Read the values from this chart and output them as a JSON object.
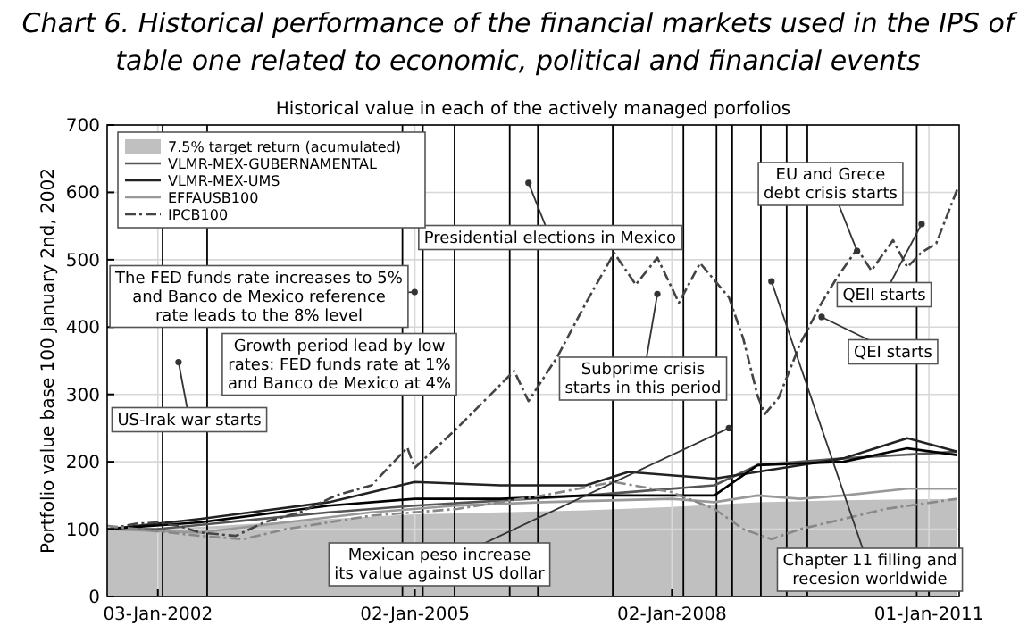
{
  "chart_data": {
    "type": "line",
    "title": "Chart 6. Historical performance of the financial markets used in the IPS of table one related to economic, political and financial events",
    "subtitle": "Historical value in each of the actively managed porfolios",
    "ylabel": "Portfolio value base 100 January 2nd, 2002",
    "xlim": [
      "2001-06-01",
      "2011-05-10"
    ],
    "ylim": [
      0,
      700
    ],
    "xticks": [
      {
        "value": "2002-01-03",
        "label": "03-Jan-2002"
      },
      {
        "value": "2005-01-02",
        "label": "02-Jan-2005"
      },
      {
        "value": "2008-01-02",
        "label": "02-Jan-2008"
      },
      {
        "value": "2011-01-01",
        "label": "01-Jan-2011"
      }
    ],
    "yticks": [
      0,
      100,
      200,
      300,
      400,
      500,
      600,
      700
    ],
    "grid": true,
    "legend": "top left",
    "series": [
      {
        "name": "7.5% target return (acumulated)",
        "type": "area",
        "color": "#c0c0c0",
        "x": [
          "2001-06",
          "2002-01",
          "2003-01",
          "2004-01",
          "2005-01",
          "2006-01",
          "2007-01",
          "2008-01",
          "2009-01",
          "2010-01",
          "2011-05"
        ],
        "values": [
          100,
          100,
          107,
          115,
          122,
          125,
          128,
          133,
          140,
          143,
          145
        ]
      },
      {
        "name": "VLMR-MEX-GUBERNAMENTAL",
        "color": "#555555",
        "line_style": "solid",
        "x": [
          "2001-06",
          "2002-01",
          "2004-01",
          "2005-01",
          "2007-01",
          "2008-07",
          "2009-01",
          "2010-01",
          "2011-05"
        ],
        "values": [
          100,
          100,
          125,
          135,
          150,
          165,
          195,
          205,
          215
        ]
      },
      {
        "name": "VLMR-MEX-UMS",
        "color": "#222222",
        "line_style": "solid",
        "x": [
          "2001-06",
          "2002-07",
          "2004-01",
          "2005-01",
          "2006-01",
          "2007-01",
          "2007-07",
          "2008-07",
          "2009-07",
          "2010-01",
          "2010-10",
          "2011-05"
        ],
        "values": [
          100,
          115,
          140,
          170,
          165,
          165,
          185,
          175,
          195,
          205,
          235,
          215
        ]
      },
      {
        "name": "EFFAUSB100",
        "color": "#999999",
        "line_style": "solid",
        "x": [
          "2001-06",
          "2002-07",
          "2003-07",
          "2004-07",
          "2005-07",
          "2006-07",
          "2008-01",
          "2008-07",
          "2009-01",
          "2009-07",
          "2010-01",
          "2010-10",
          "2011-05"
        ],
        "values": [
          100,
          95,
          110,
          125,
          135,
          140,
          145,
          140,
          150,
          145,
          150,
          160,
          160
        ]
      },
      {
        "color": "#000000",
        "line_style": "solid",
        "x": [
          "2001-06",
          "2002-07",
          "2004-01",
          "2005-01",
          "2006-01",
          "2007-01",
          "2008-07",
          "2009-01",
          "2010-01",
          "2010-10",
          "2011-05"
        ],
        "values": [
          100,
          110,
          135,
          145,
          145,
          150,
          150,
          195,
          200,
          220,
          210
        ]
      },
      {
        "name": "IPCB100",
        "color": "#444444",
        "line_style": "dashed",
        "x": [
          "2001-06",
          "2001-10",
          "2002-01",
          "2002-04",
          "2002-07",
          "2002-12",
          "2003-04",
          "2003-09",
          "2004-02",
          "2004-07",
          "2004-12",
          "2005-01",
          "2005-07",
          "2006-03",
          "2006-05",
          "2006-09",
          "2007-01",
          "2007-05",
          "2007-08",
          "2007-11",
          "2008-02",
          "2008-05",
          "2008-09",
          "2008-11",
          "2009-01",
          "2009-02",
          "2009-04",
          "2009-07",
          "2009-10",
          "2009-12",
          "2010-03",
          "2010-05",
          "2010-08",
          "2010-10",
          "2010-12",
          "2011-02",
          "2011-05"
        ],
        "values": [
          100,
          108,
          110,
          105,
          95,
          90,
          110,
          125,
          150,
          165,
          221,
          191,
          250,
          335,
          290,
          356,
          436,
          510,
          463,
          503,
          436,
          495,
          444,
          383,
          298,
          271,
          295,
          375,
          436,
          471,
          516,
          484,
          529,
          489,
          511,
          524,
          604
        ]
      },
      {
        "color": "#888888",
        "line_style": "dashed",
        "x": [
          "2001-06",
          "2002-07",
          "2003-01",
          "2003-07",
          "2004-07",
          "2005-07",
          "2006-07",
          "2007-05",
          "2008-01",
          "2008-07",
          "2008-11",
          "2009-03",
          "2009-07",
          "2010-01",
          "2010-07",
          "2011-05"
        ],
        "values": [
          105,
          90,
          85,
          100,
          120,
          130,
          150,
          170,
          155,
          130,
          100,
          85,
          100,
          115,
          130,
          145
        ]
      }
    ],
    "ref_lines": [
      {
        "axis": "x",
        "value": "2002-01-23",
        "color": "#000000"
      },
      {
        "axis": "x",
        "value": "2002-08-01",
        "color": "#000000"
      },
      {
        "axis": "x",
        "value": "2004-11-10",
        "color": "#000000"
      },
      {
        "axis": "x",
        "value": "2005-02-05",
        "color": "#000000"
      },
      {
        "axis": "x",
        "value": "2005-06-20",
        "color": "#000000"
      },
      {
        "axis": "x",
        "value": "2006-02-10",
        "color": "#000000"
      },
      {
        "axis": "x",
        "value": "2006-06-10",
        "color": "#000000"
      },
      {
        "axis": "x",
        "value": "2007-04-25",
        "color": "#000000"
      },
      {
        "axis": "x",
        "value": "2008-02-20",
        "color": "#000000"
      },
      {
        "axis": "x",
        "value": "2008-07-10",
        "color": "#000000"
      },
      {
        "axis": "x",
        "value": "2008-09-15",
        "color": "#000000"
      },
      {
        "axis": "x",
        "value": "2009-01-15",
        "color": "#000000"
      },
      {
        "axis": "x",
        "value": "2009-05-05",
        "color": "#000000"
      },
      {
        "axis": "x",
        "value": "2009-08-01",
        "color": "#000000"
      },
      {
        "axis": "x",
        "value": "2010-11-10",
        "color": "#000000"
      }
    ],
    "annotations": [
      {
        "text": "US-Irak war starts",
        "x": "2002-04",
        "y": 348
      },
      {
        "text": "The FED funds rate increases to 5%\nand Banco de Mexico reference\nrate leads to the 8% level",
        "x": "2005-01",
        "y": 452
      },
      "Growth period lead by low\nrates: FED funds rate at 1%\nand Banco de Mexico at 4%",
      {
        "text": "Presidential elections in Mexico",
        "x": "2006-05",
        "y": 614
      },
      {
        "text": "Subprime crisis\nstarts in this period",
        "x": "2007-11",
        "y": 449
      },
      {
        "text": "EU and Grece\ndebt crisis starts",
        "x": "2010-03",
        "y": 513
      },
      {
        "text": "QEII starts",
        "x": "2010-12",
        "y": 553
      },
      {
        "text": "QEI starts",
        "x": "2009-10",
        "y": 415
      },
      {
        "text": "Chapter 11 filling and\nrecesion worldwide",
        "x": "2009-03",
        "y": 468
      },
      {
        "text": "Mexican peso increase\nits value against US dollar",
        "x": "2008-09",
        "y": 250
      }
    ]
  }
}
